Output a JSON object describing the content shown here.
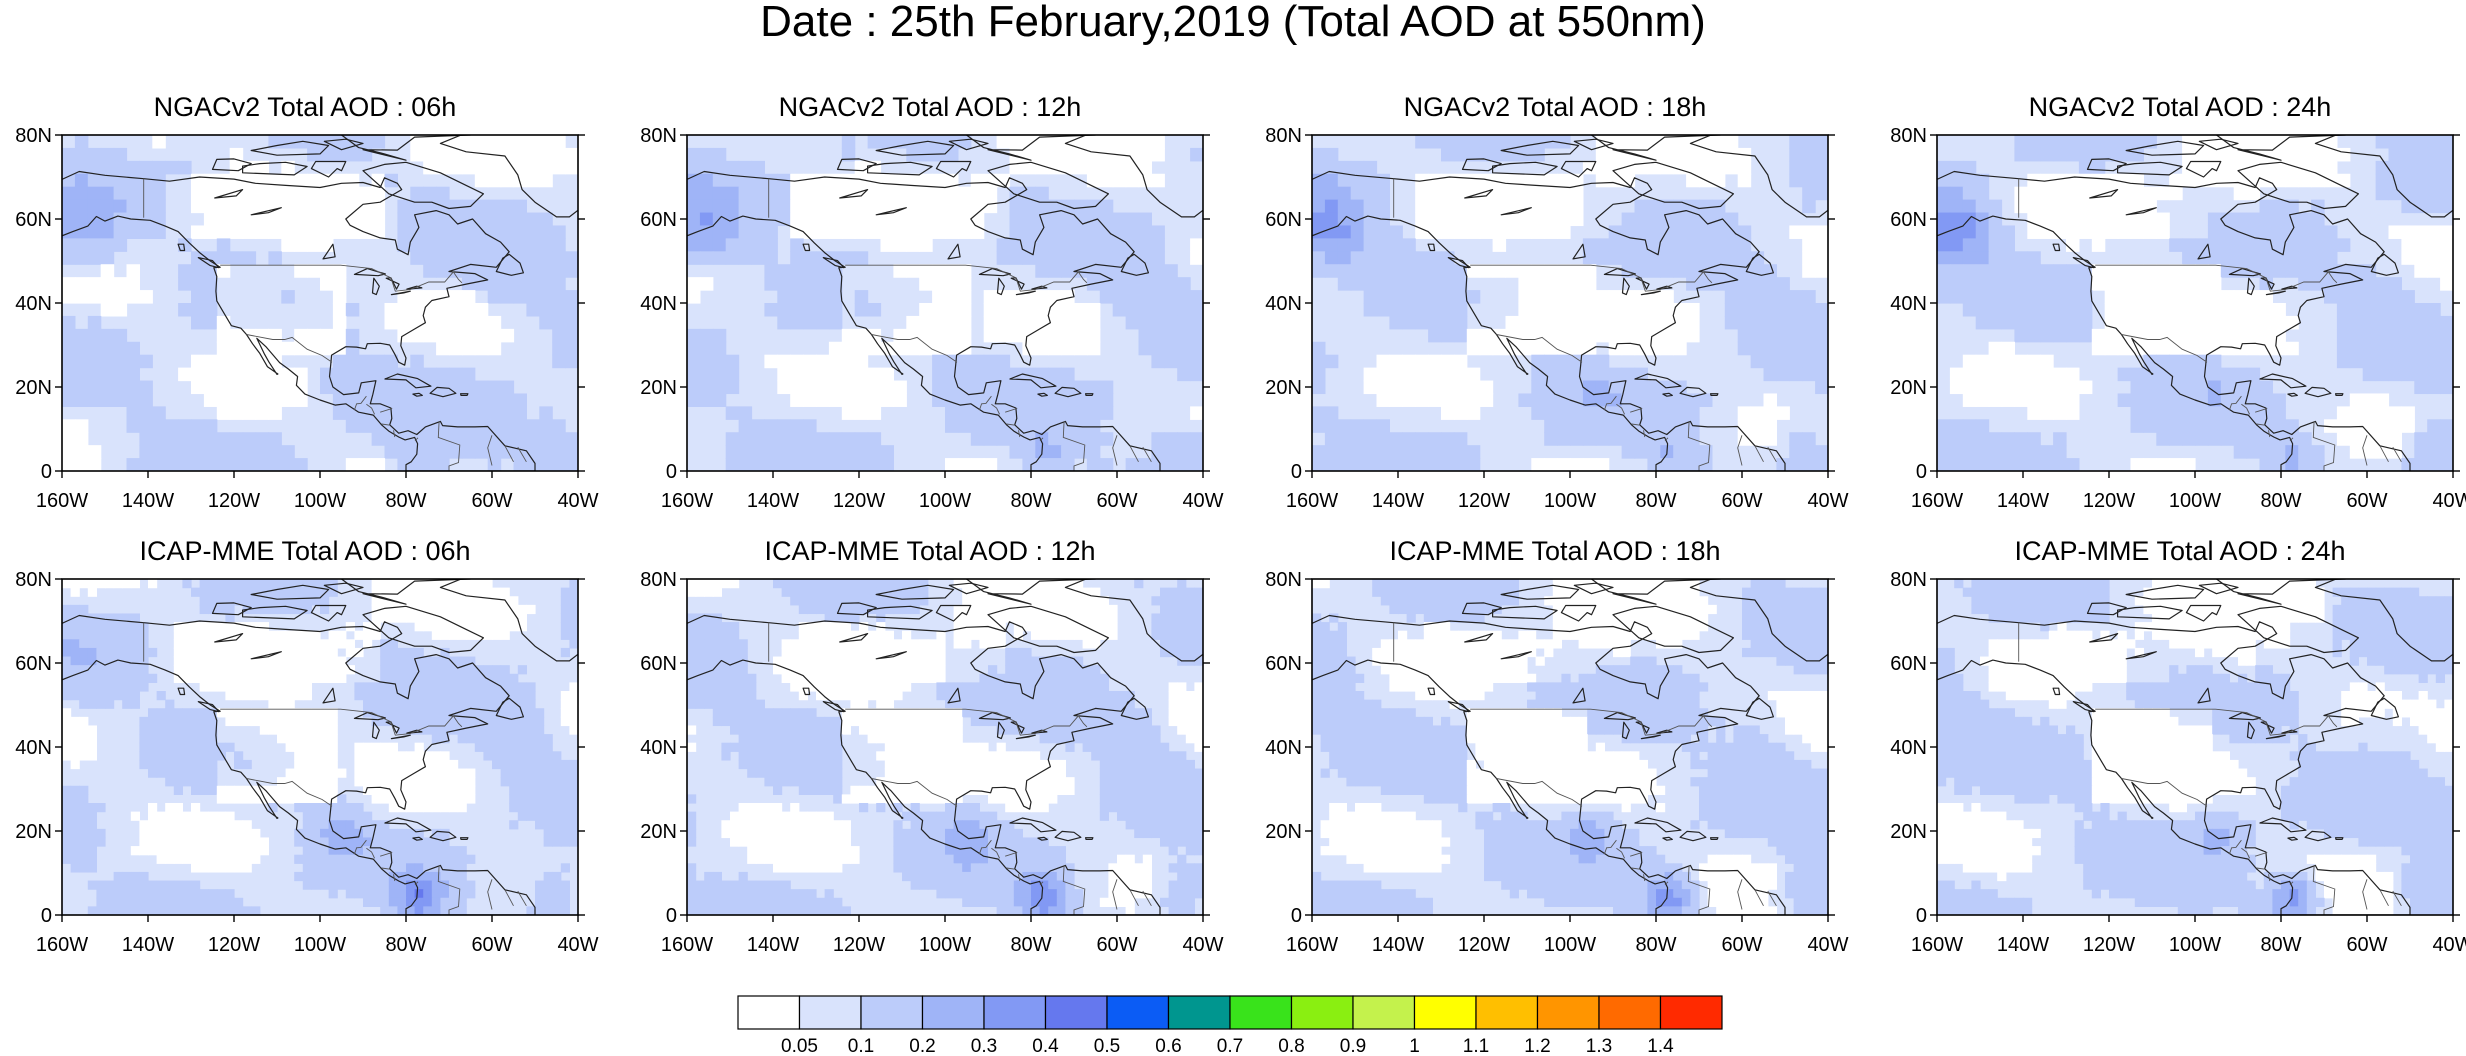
{
  "title": "Date : 25th February,2019 (Total AOD at 550nm)",
  "axes": {
    "lat_labels": [
      "0",
      "20N",
      "40N",
      "60N",
      "80N"
    ],
    "lat_values": [
      0,
      20,
      40,
      60,
      80
    ],
    "lon_labels": [
      "160W",
      "140W",
      "120W",
      "100W",
      "80W",
      "60W",
      "40W"
    ],
    "lon_values": [
      -160,
      -140,
      -120,
      -100,
      -80,
      -60,
      -40
    ],
    "lon_range": [
      -160,
      -40
    ],
    "lat_range": [
      0,
      80
    ]
  },
  "panels": [
    {
      "title": "NGACv2 Total AOD : 06h"
    },
    {
      "title": "NGACv2 Total AOD : 12h"
    },
    {
      "title": "NGACv2 Total AOD : 18h"
    },
    {
      "title": "NGACv2 Total AOD : 24h"
    },
    {
      "title": "ICAP-MME Total AOD : 06h"
    },
    {
      "title": "ICAP-MME Total AOD : 12h"
    },
    {
      "title": "ICAP-MME Total AOD : 18h"
    },
    {
      "title": "ICAP-MME Total AOD : 24h"
    }
  ],
  "colorbar": {
    "labels": [
      "0.05",
      "0.1",
      "0.2",
      "0.3",
      "0.4",
      "0.5",
      "0.6",
      "0.7",
      "0.8",
      "0.9",
      "1",
      "1.1",
      "1.2",
      "1.3",
      "1.4"
    ],
    "colors": [
      "#ffffff",
      "#d9e3fc",
      "#bcccfa",
      "#9fb4f7",
      "#8299f4",
      "#6578ee",
      "#0b5cf5",
      "#00968f",
      "#39e31b",
      "#8aef11",
      "#c4f24c",
      "#ffff00",
      "#ffbf00",
      "#ff9500",
      "#ff6a00",
      "#ff2a00"
    ]
  }
}
